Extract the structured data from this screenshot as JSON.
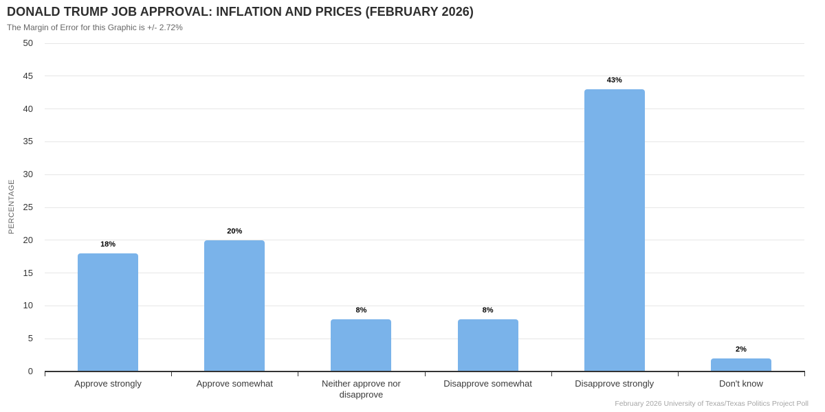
{
  "chart_data": {
    "type": "bar",
    "title": "DONALD TRUMP JOB APPROVAL: INFLATION AND PRICES (FEBRUARY 2026)",
    "subtitle": "The Margin of Error for this Graphic is +/- 2.72%",
    "categories": [
      "Approve strongly",
      "Approve somewhat",
      "Neither approve nor disapprove",
      "Disapprove somewhat",
      "Disapprove strongly",
      "Don't know"
    ],
    "values": [
      18,
      20,
      8,
      8,
      43,
      2
    ],
    "labels": [
      "18%",
      "20%",
      "8%",
      "8%",
      "43%",
      "2%"
    ],
    "xlabel": "",
    "ylabel": "PERCENTAGE",
    "ylim": [
      0,
      50
    ],
    "yticks": [
      0,
      5,
      10,
      15,
      20,
      25,
      30,
      35,
      40,
      45,
      50
    ],
    "grid": true,
    "legend": false,
    "bar_color": "#7ab3ea",
    "credit": "February 2026 University of Texas/Texas Politics Project Poll"
  },
  "colors": {
    "bar": "#7ab3ea",
    "grid": "#e6e6e6",
    "axis_line": "#333333",
    "title": "#2e2e2e",
    "subtitle": "#666666",
    "tick_label": "#333333",
    "category_label": "#3a3a3a",
    "value_label": "#000000",
    "credit": "#a6a6a6",
    "background": "#ffffff"
  }
}
